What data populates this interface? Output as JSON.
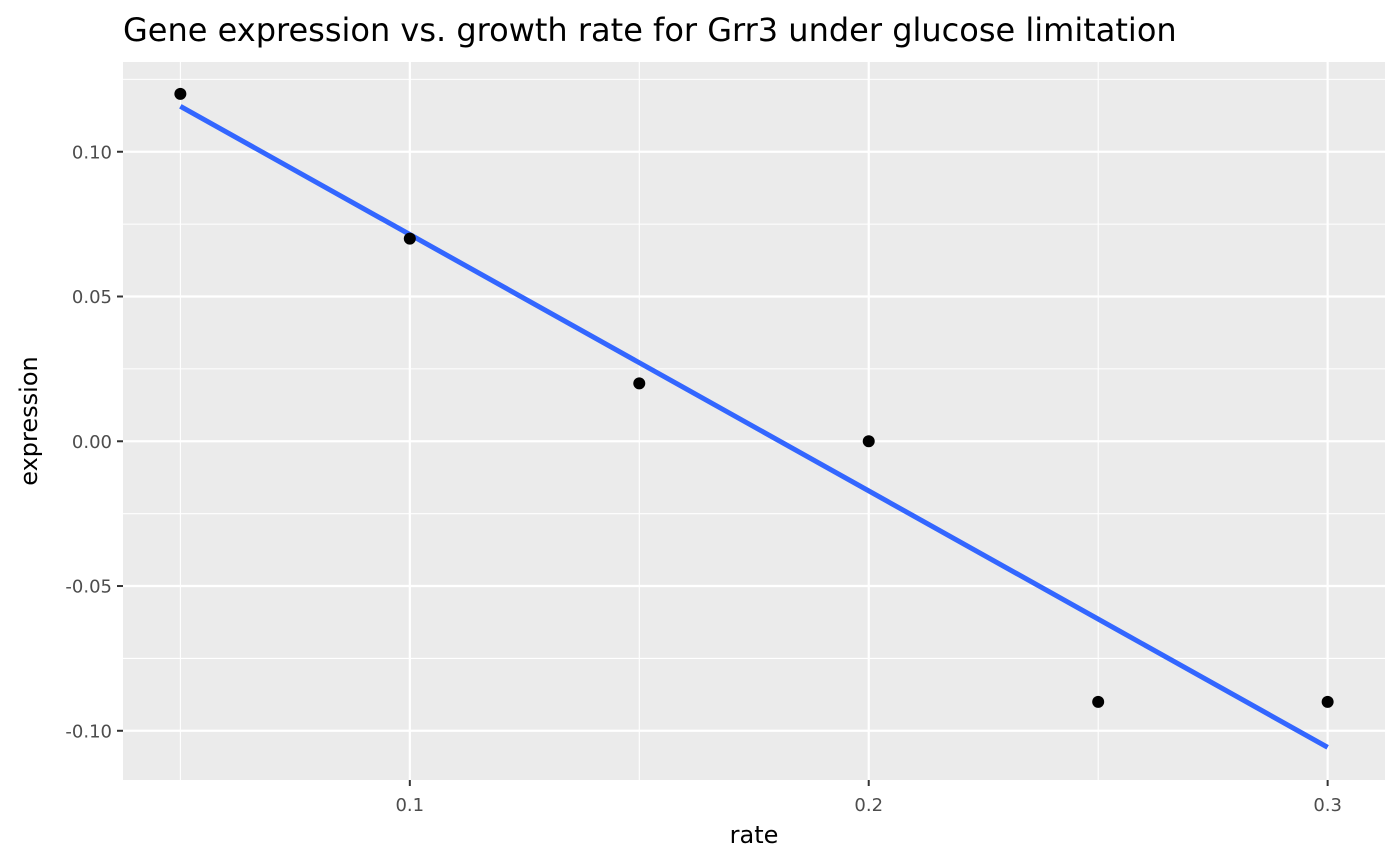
{
  "chart_data": {
    "type": "scatter",
    "title": "Gene expression vs. growth rate for Grr3 under glucose limitation",
    "xlabel": "rate",
    "ylabel": "expression",
    "xlim": [
      0.0375,
      0.3125
    ],
    "ylim": [
      -0.117,
      0.131
    ],
    "x_ticks": [
      0.1,
      0.2,
      0.3
    ],
    "x_tick_labels": [
      "0.1",
      "0.2",
      "0.3"
    ],
    "y_ticks": [
      -0.1,
      -0.05,
      0.0,
      0.05,
      0.1
    ],
    "y_tick_labels": [
      "-0.10",
      "-0.05",
      "0.00",
      "0.05",
      "0.10"
    ],
    "grid": true,
    "legend": "none",
    "points": [
      {
        "x": 0.05,
        "y": 0.12
      },
      {
        "x": 0.1,
        "y": 0.07
      },
      {
        "x": 0.15,
        "y": 0.02
      },
      {
        "x": 0.2,
        "y": 0.0
      },
      {
        "x": 0.25,
        "y": -0.09
      },
      {
        "x": 0.3,
        "y": -0.09
      }
    ],
    "fit_line": {
      "method": "lm",
      "x": [
        0.05,
        0.3
      ],
      "y": [
        0.1157,
        -0.1057
      ]
    },
    "colors": {
      "panel_background": "#ebebeb",
      "grid": "#ffffff",
      "points": "#000000",
      "fit_line": "#3366ff",
      "tick_text": "#4d4d4d"
    }
  }
}
